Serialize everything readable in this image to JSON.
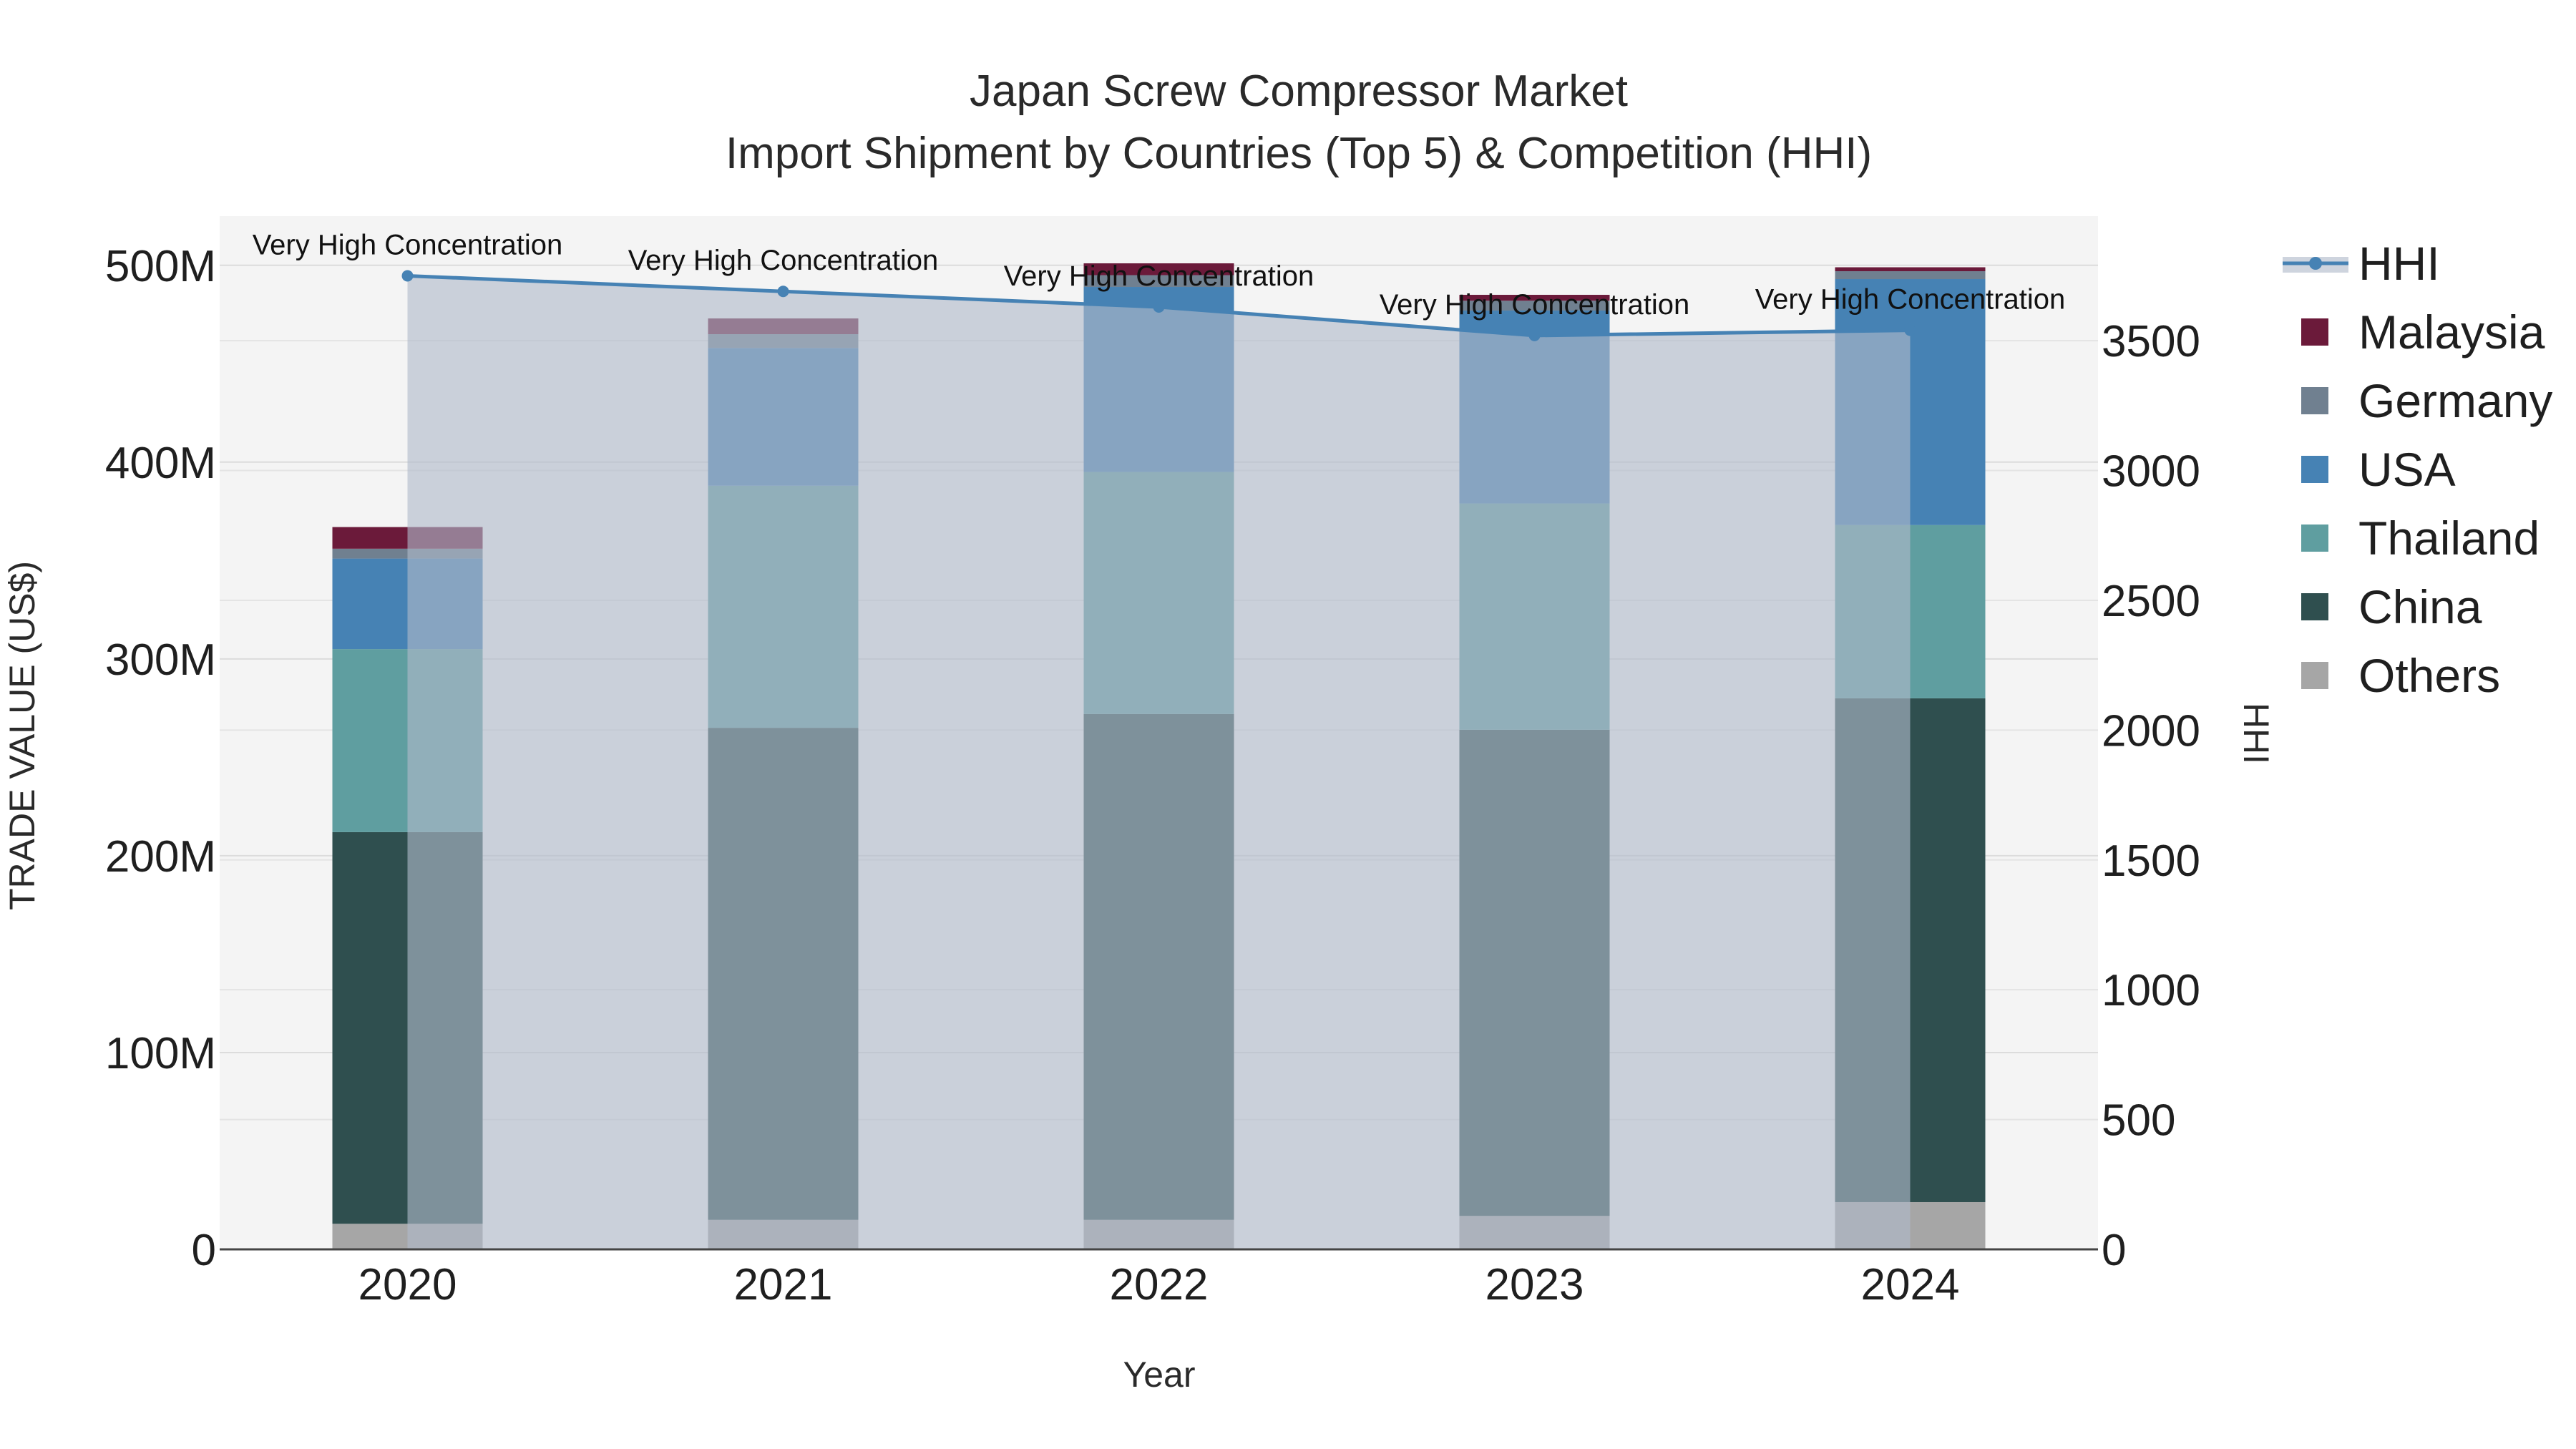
{
  "chart_data": {
    "type": "bar",
    "title": "Japan Screw Compressor Market",
    "subtitle": "Import Shipment by Countries (Top 5) & Competition (HHI)",
    "xlabel": "Year",
    "ylabel": "TRADE VALUE (US$)",
    "y2label": "HHI",
    "categories": [
      "2020",
      "2021",
      "2022",
      "2023",
      "2024"
    ],
    "ylim": [
      0,
      525000000
    ],
    "y_ticks": [
      0,
      100000000,
      200000000,
      300000000,
      400000000,
      500000000
    ],
    "y_tick_labels": [
      "0",
      "100M",
      "200M",
      "300M",
      "400M",
      "500M"
    ],
    "y2lim": [
      0,
      3980
    ],
    "y2_ticks": [
      0,
      500,
      1000,
      1500,
      2000,
      2500,
      3000,
      3500
    ],
    "y2_tick_labels": [
      "0",
      "500",
      "1000",
      "1500",
      "2000",
      "2500",
      "3000",
      "3500"
    ],
    "series": [
      {
        "name": "Others",
        "color": "#a6a6a6",
        "values": [
          13000000,
          15000000,
          15000000,
          17000000,
          24000000
        ]
      },
      {
        "name": "China",
        "color": "#2f4f4f",
        "values": [
          199000000,
          250000000,
          257000000,
          247000000,
          256000000
        ]
      },
      {
        "name": "Thailand",
        "color": "#5f9ea0",
        "values": [
          93000000,
          123000000,
          123000000,
          115000000,
          88000000
        ]
      },
      {
        "name": "USA",
        "color": "#4682b4",
        "values": [
          46000000,
          70000000,
          94000000,
          98000000,
          125000000
        ]
      },
      {
        "name": "Germany",
        "color": "#708090",
        "values": [
          5000000,
          7000000,
          6000000,
          5000000,
          4000000
        ]
      },
      {
        "name": "Malaysia",
        "color": "#6b1a3a",
        "values": [
          11000000,
          8000000,
          6000000,
          3000000,
          2000000
        ]
      }
    ],
    "hhi": {
      "name": "HHI",
      "color": "#4682b4",
      "values": [
        3750,
        3690,
        3630,
        3520,
        3540
      ],
      "labels": [
        "Very High Concentration",
        "Very High Concentration",
        "Very High Concentration",
        "Very High Concentration",
        "Very High Concentration"
      ]
    },
    "legend": [
      "HHI",
      "Malaysia",
      "Germany",
      "USA",
      "Thailand",
      "China",
      "Others"
    ],
    "legend_position": "right",
    "grid": true
  }
}
